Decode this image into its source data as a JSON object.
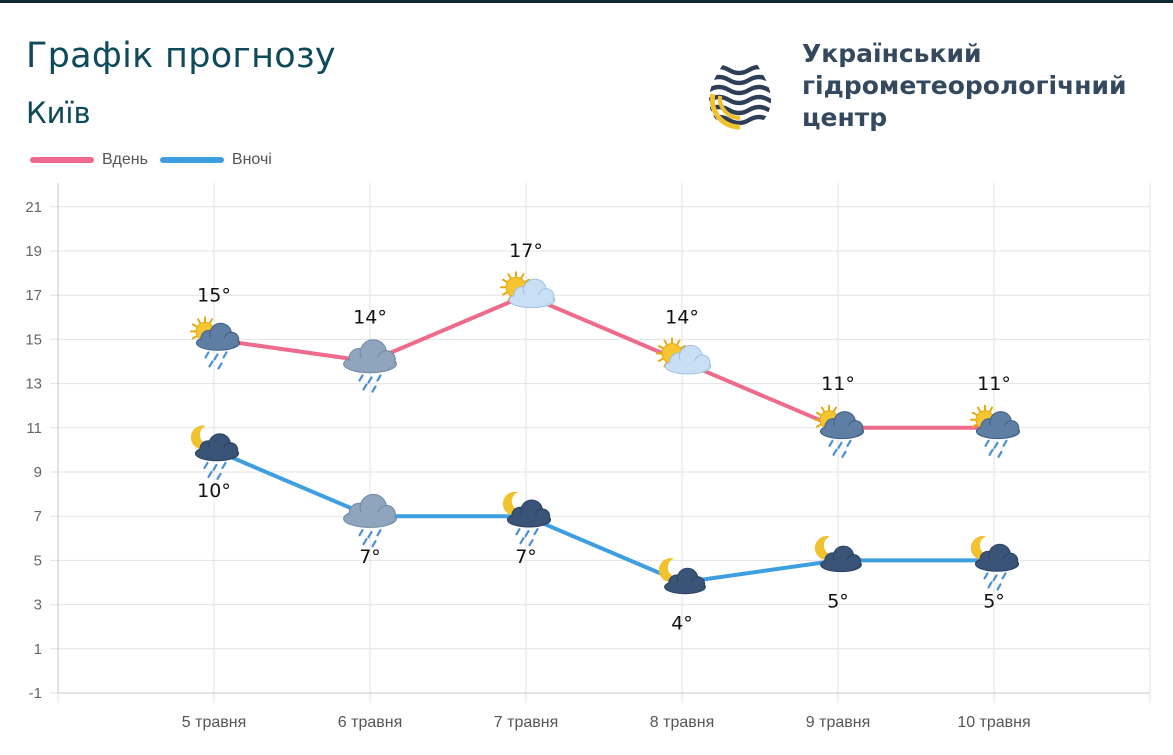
{
  "header": {
    "title": "Графік прогнозу",
    "city": "Київ"
  },
  "brand": {
    "name_lines": [
      "Український",
      "гідрометеорологічний",
      "центр"
    ],
    "logo_icon": "water-drop-logo-icon",
    "colors": {
      "text": "#34495e",
      "logo_dark": "#2f3e57",
      "logo_accent": "#f2c12e"
    }
  },
  "legend": {
    "items": [
      {
        "label": "Вдень",
        "color": "#ee6b8b"
      },
      {
        "label": "Вночі",
        "color": "#3d9fe0"
      }
    ]
  },
  "chart_data": {
    "type": "line",
    "categories": [
      "5 травня",
      "6 травня",
      "7 травня",
      "8 травня",
      "9 травня",
      "10 травня"
    ],
    "series": [
      {
        "name": "Вдень",
        "color": "#ee6b8b",
        "values": [
          15,
          14,
          17,
          14,
          11,
          11
        ],
        "labels": [
          "15°",
          "14°",
          "17°",
          "14°",
          "11°",
          "11°"
        ],
        "icons": [
          "partly-cloudy-rain-icon",
          "cloud-rain-icon",
          "partly-cloudy-icon",
          "partly-cloudy-icon",
          "partly-cloudy-rain-icon",
          "partly-cloudy-rain-icon"
        ]
      },
      {
        "name": "Вночі",
        "color": "#3d9fe0",
        "values": [
          10,
          7,
          7,
          4,
          5,
          5
        ],
        "labels": [
          "10°",
          "7°",
          "7°",
          "4°",
          "5°",
          "5°"
        ],
        "icons": [
          "night-cloud-rain-icon",
          "cloud-rain-icon",
          "night-cloud-rain-icon",
          "night-cloud-icon",
          "night-cloud-icon",
          "night-cloud-rain-icon"
        ]
      }
    ],
    "y_ticks": [
      21,
      19,
      17,
      15,
      13,
      11,
      9,
      7,
      5,
      3,
      1,
      -1
    ],
    "ylim": [
      -1,
      22
    ],
    "grid": true,
    "legend_position": "top-left"
  }
}
